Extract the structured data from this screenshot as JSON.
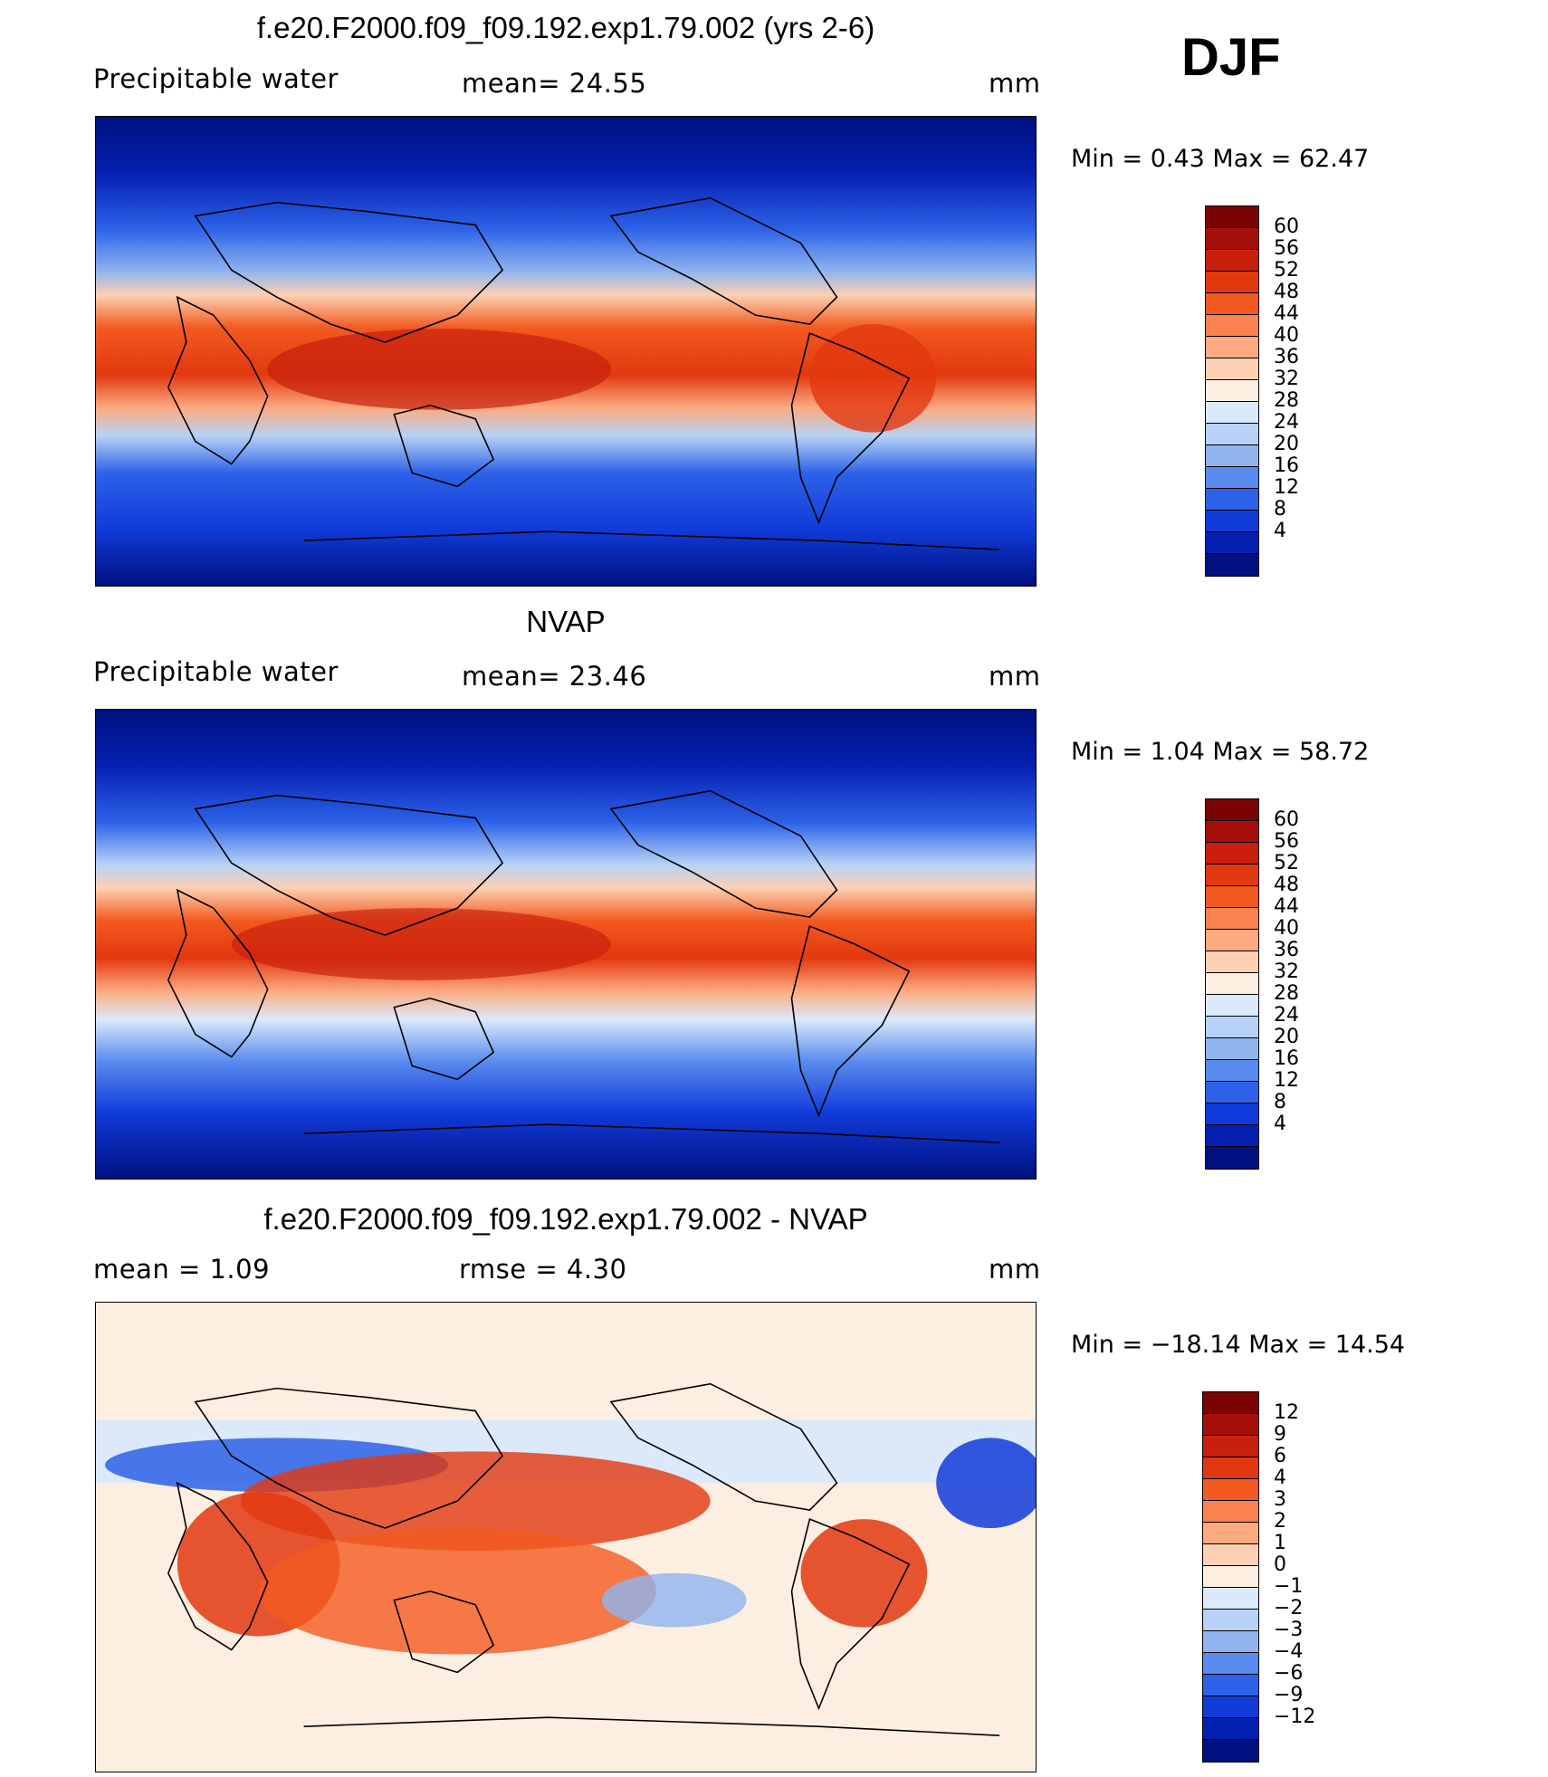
{
  "season": "DJF",
  "panels": [
    {
      "title": "f.e20.F2000.f09_f09.192.exp1.79.002 (yrs 2-6)",
      "left_label": "Precipitable  water",
      "mid_label": "mean=   24.55",
      "units": "mm",
      "minmax": "Min  =     0.43  Max  =    62.47",
      "colorbar": {
        "ticks": [
          "60",
          "56",
          "52",
          "48",
          "44",
          "40",
          "36",
          "32",
          "28",
          "24",
          "20",
          "16",
          "12",
          "8",
          "4"
        ],
        "colors": [
          "#7a0403",
          "#a50f0a",
          "#c81f0d",
          "#e2380f",
          "#f25a1f",
          "#fa8350",
          "#fcaa80",
          "#fdd0b3",
          "#fdeee2",
          "#dbe9fa",
          "#b7d2f6",
          "#8fb4ef",
          "#5a8bee",
          "#2d62e8",
          "#103bd9",
          "#0420b1",
          "#001080"
        ]
      }
    },
    {
      "title": "NVAP",
      "left_label": "Precipitable  water",
      "mid_label": "mean=   23.46",
      "units": "mm",
      "minmax": "Min  =     1.04  Max  =    58.72",
      "colorbar": {
        "ticks": [
          "60",
          "56",
          "52",
          "48",
          "44",
          "40",
          "36",
          "32",
          "28",
          "24",
          "20",
          "16",
          "12",
          "8",
          "4"
        ],
        "colors": [
          "#7a0403",
          "#a50f0a",
          "#c81f0d",
          "#e2380f",
          "#f25a1f",
          "#fa8350",
          "#fcaa80",
          "#fdd0b3",
          "#fdeee2",
          "#dbe9fa",
          "#b7d2f6",
          "#8fb4ef",
          "#5a8bee",
          "#2d62e8",
          "#103bd9",
          "#0420b1",
          "#001080"
        ]
      }
    },
    {
      "title": "f.e20.F2000.f09_f09.192.exp1.79.002 - NVAP",
      "left_label": "mean  =     1.09",
      "mid_label": "rmse  =     4.30",
      "units": "mm",
      "minmax": "Min  = −18.14  Max  =    14.54",
      "colorbar": {
        "ticks": [
          "12",
          "9",
          "6",
          "4",
          "3",
          "2",
          "1",
          "0",
          "−1",
          "−2",
          "−3",
          "−4",
          "−6",
          "−9",
          "−12"
        ],
        "colors": [
          "#7a0403",
          "#a50f0a",
          "#c81f0d",
          "#e2380f",
          "#f25a1f",
          "#fa8350",
          "#fcaa80",
          "#fdd0b3",
          "#fdeee2",
          "#dbe9fa",
          "#b7d2f6",
          "#8fb4ef",
          "#5a8bee",
          "#2d62e8",
          "#103bd9",
          "#0420b1",
          "#001080"
        ]
      }
    }
  ]
}
